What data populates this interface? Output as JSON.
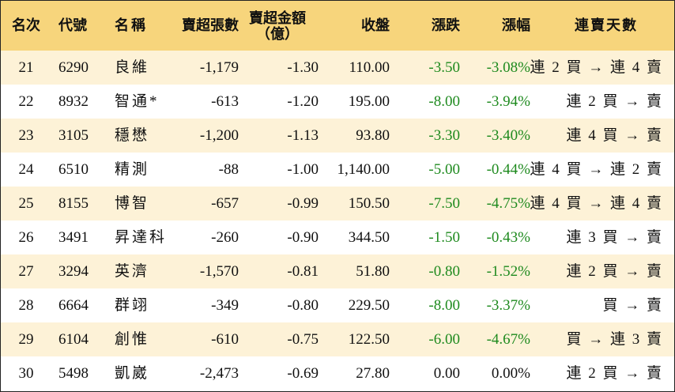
{
  "header": {
    "rank": "名次",
    "code": "代號",
    "name": "名稱",
    "volume": "賣超張數",
    "amount_line1": "賣超金額",
    "amount_line2": "（億）",
    "close": "收盤",
    "change": "漲跌",
    "change_pct": "漲幅",
    "streak": "連賣天數"
  },
  "colors": {
    "header_bg": "#f7d57c",
    "stripe_bg": "#fdf2d7",
    "negative_text": "#1e8a1e"
  },
  "rows": [
    {
      "rank": "21",
      "code": "6290",
      "name": "良維",
      "volume": "-1,179",
      "amount": "-1.30",
      "close": "110.00",
      "change": "-3.50",
      "change_pct": "-3.08%",
      "streak": "連 2 買 → 連 4 賣"
    },
    {
      "rank": "22",
      "code": "8932",
      "name": "智通*",
      "volume": "-613",
      "amount": "-1.20",
      "close": "195.00",
      "change": "-8.00",
      "change_pct": "-3.94%",
      "streak": "連 2 買 → 賣"
    },
    {
      "rank": "23",
      "code": "3105",
      "name": "穩懋",
      "volume": "-1,200",
      "amount": "-1.13",
      "close": "93.80",
      "change": "-3.30",
      "change_pct": "-3.40%",
      "streak": "連 4 買 → 賣"
    },
    {
      "rank": "24",
      "code": "6510",
      "name": "精測",
      "volume": "-88",
      "amount": "-1.00",
      "close": "1,140.00",
      "change": "-5.00",
      "change_pct": "-0.44%",
      "streak": "連 4 買 → 連 2 賣"
    },
    {
      "rank": "25",
      "code": "8155",
      "name": "博智",
      "volume": "-657",
      "amount": "-0.99",
      "close": "150.50",
      "change": "-7.50",
      "change_pct": "-4.75%",
      "streak": "連 4 買 → 連 4 賣"
    },
    {
      "rank": "26",
      "code": "3491",
      "name": "昇達科",
      "volume": "-260",
      "amount": "-0.90",
      "close": "344.50",
      "change": "-1.50",
      "change_pct": "-0.43%",
      "streak": "連 3 買 → 賣"
    },
    {
      "rank": "27",
      "code": "3294",
      "name": "英濟",
      "volume": "-1,570",
      "amount": "-0.81",
      "close": "51.80",
      "change": "-0.80",
      "change_pct": "-1.52%",
      "streak": "連 2 買 → 賣"
    },
    {
      "rank": "28",
      "code": "6664",
      "name": "群翊",
      "volume": "-349",
      "amount": "-0.80",
      "close": "229.50",
      "change": "-8.00",
      "change_pct": "-3.37%",
      "streak": "買 → 賣"
    },
    {
      "rank": "29",
      "code": "6104",
      "name": "創惟",
      "volume": "-610",
      "amount": "-0.75",
      "close": "122.50",
      "change": "-6.00",
      "change_pct": "-4.67%",
      "streak": "買 → 連 3 賣"
    },
    {
      "rank": "30",
      "code": "5498",
      "name": "凱崴",
      "volume": "-2,473",
      "amount": "-0.69",
      "close": "27.80",
      "change": "0.00",
      "change_pct": "0.00%",
      "streak": "連 2 買 → 賣"
    }
  ]
}
